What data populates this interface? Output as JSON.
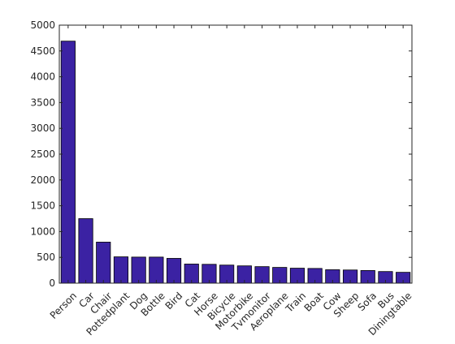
{
  "chart_data": {
    "type": "bar",
    "title": "",
    "xlabel": "",
    "ylabel": "",
    "categories": [
      "Person",
      "Car",
      "Chair",
      "Pottedplant",
      "Dog",
      "Bottle",
      "Bird",
      "Cat",
      "Horse",
      "Bicycle",
      "Motorbike",
      "Tvmonitor",
      "Aeroplane",
      "Train",
      "Boat",
      "Cow",
      "Sheep",
      "Sofa",
      "Bus",
      "Diningtable"
    ],
    "values": [
      4690,
      1250,
      795,
      510,
      505,
      505,
      480,
      370,
      365,
      350,
      335,
      320,
      305,
      290,
      285,
      260,
      255,
      245,
      225,
      210
    ],
    "ylim": [
      0,
      5000
    ],
    "yticks": [
      0,
      500,
      1000,
      1500,
      2000,
      2500,
      3000,
      3500,
      4000,
      4500,
      5000
    ],
    "grid": false,
    "bar_color": "#3b22a3",
    "bar_edge_color": "#000000"
  }
}
